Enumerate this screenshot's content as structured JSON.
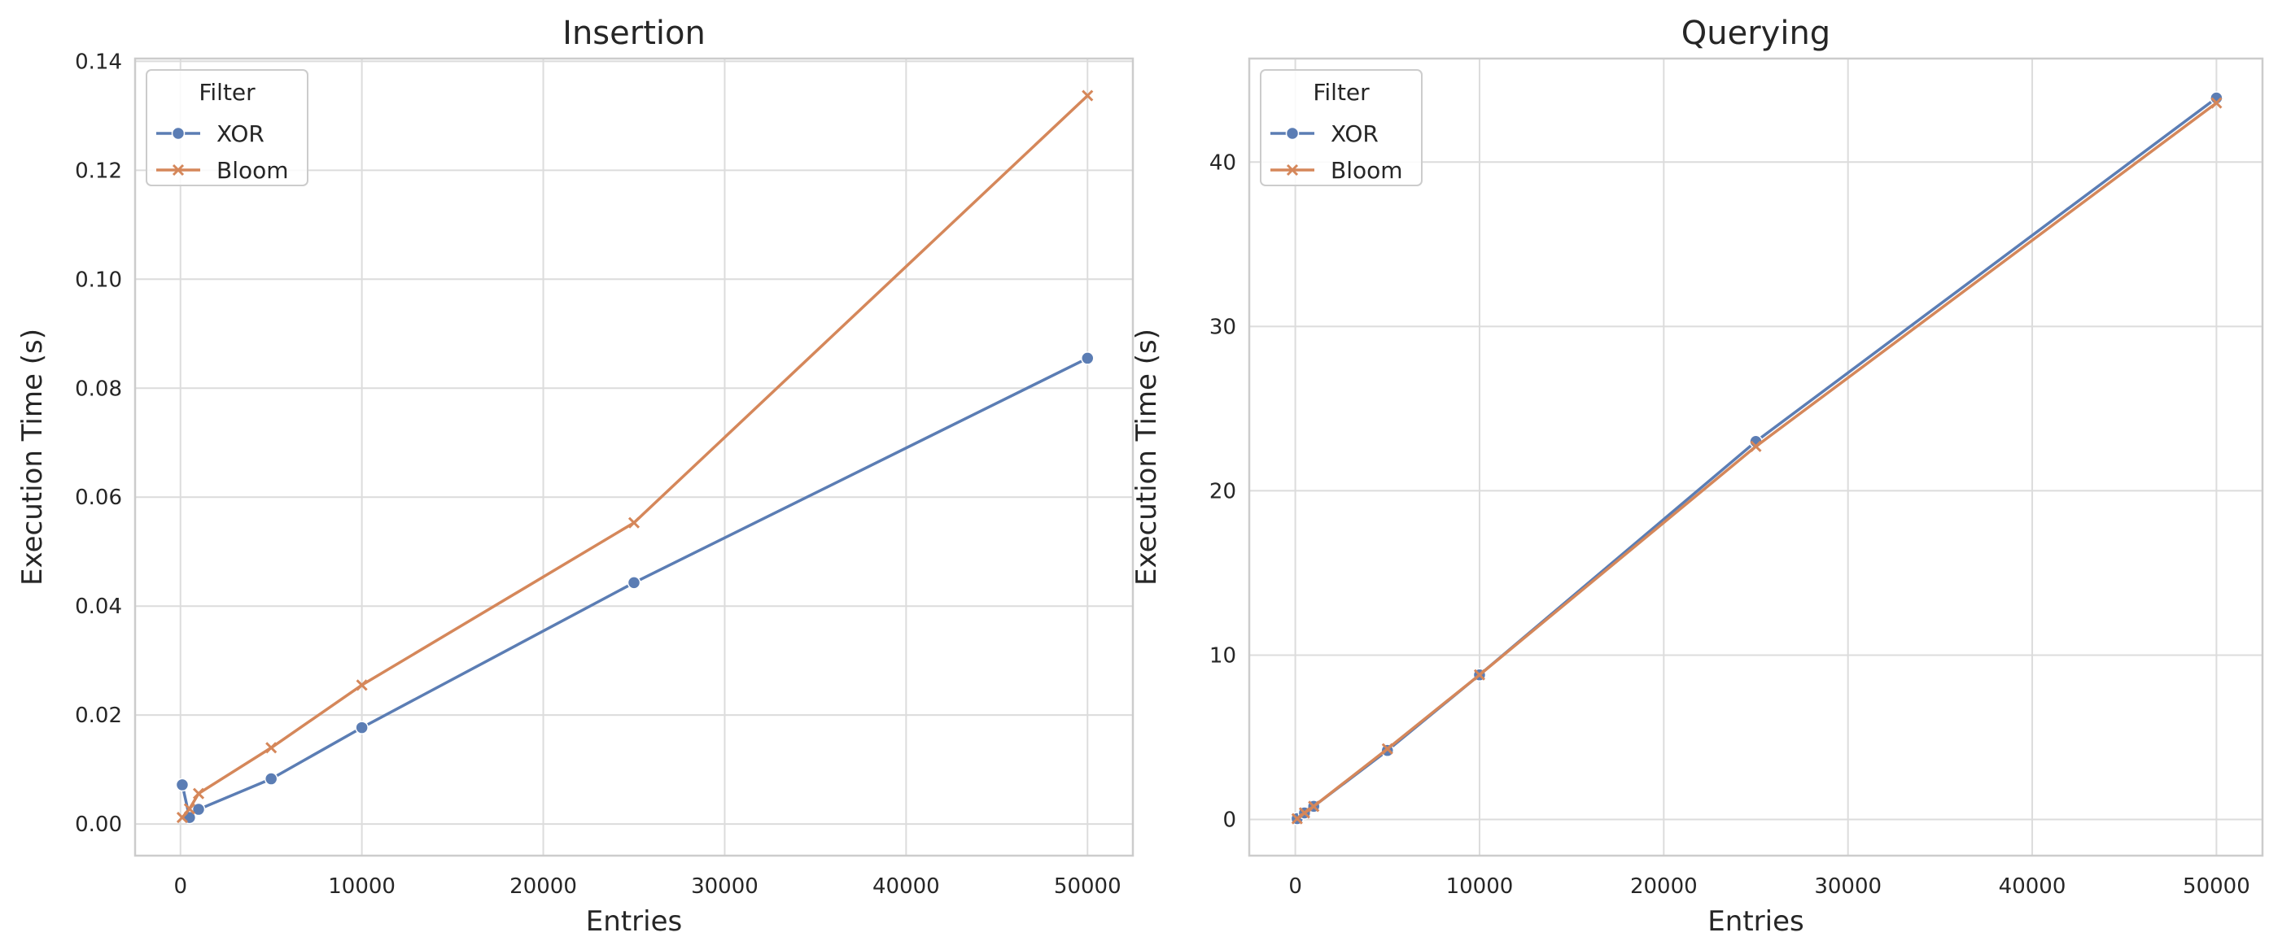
{
  "chart_data": [
    {
      "type": "line",
      "title": "Insertion",
      "xlabel": "Entries",
      "ylabel": "Execution Time (s)",
      "xlim": [
        -2500,
        52500
      ],
      "ylim": [
        -0.0058,
        0.1405
      ],
      "xticks": [
        0,
        10000,
        20000,
        30000,
        40000,
        50000
      ],
      "yticks": [
        0.0,
        0.02,
        0.04,
        0.06,
        0.08,
        0.1,
        0.12,
        0.14
      ],
      "ytick_labels": [
        "0.00",
        "0.02",
        "0.04",
        "0.06",
        "0.08",
        "0.10",
        "0.12",
        "0.14"
      ],
      "grid": true,
      "legend": {
        "title": "Filter",
        "position": "top-left"
      },
      "series": [
        {
          "name": "XOR",
          "marker": "circle",
          "color": "#5b7db4",
          "x": [
            100,
            500,
            1000,
            5000,
            10000,
            25000,
            50000
          ],
          "y": [
            0.0072,
            0.0012,
            0.0027,
            0.0083,
            0.0177,
            0.0443,
            0.0855
          ]
        },
        {
          "name": "Bloom",
          "marker": "x",
          "color": "#d5875a",
          "x": [
            100,
            500,
            1000,
            5000,
            10000,
            25000,
            50000
          ],
          "y": [
            0.0012,
            0.0028,
            0.0056,
            0.014,
            0.0255,
            0.0553,
            0.1337
          ]
        }
      ]
    },
    {
      "type": "line",
      "title": "Querying",
      "xlabel": "Entries",
      "ylabel": "Execution Time (s)",
      "xlim": [
        -2500,
        52500
      ],
      "ylim": [
        -2.2,
        46.3
      ],
      "xticks": [
        0,
        10000,
        20000,
        30000,
        40000,
        50000
      ],
      "yticks": [
        0,
        10,
        20,
        30,
        40
      ],
      "ytick_labels": [
        "0",
        "10",
        "20",
        "30",
        "40"
      ],
      "grid": true,
      "legend": {
        "title": "Filter",
        "position": "top-left"
      },
      "series": [
        {
          "name": "XOR",
          "marker": "circle",
          "color": "#5b7db4",
          "x": [
            100,
            500,
            1000,
            5000,
            10000,
            25000,
            50000
          ],
          "y": [
            0.05,
            0.4,
            0.8,
            4.2,
            8.8,
            23.0,
            43.9
          ]
        },
        {
          "name": "Bloom",
          "marker": "x",
          "color": "#d5875a",
          "x": [
            100,
            500,
            1000,
            5000,
            10000,
            25000,
            50000
          ],
          "y": [
            0.05,
            0.4,
            0.8,
            4.3,
            8.8,
            22.7,
            43.6
          ]
        }
      ]
    }
  ]
}
